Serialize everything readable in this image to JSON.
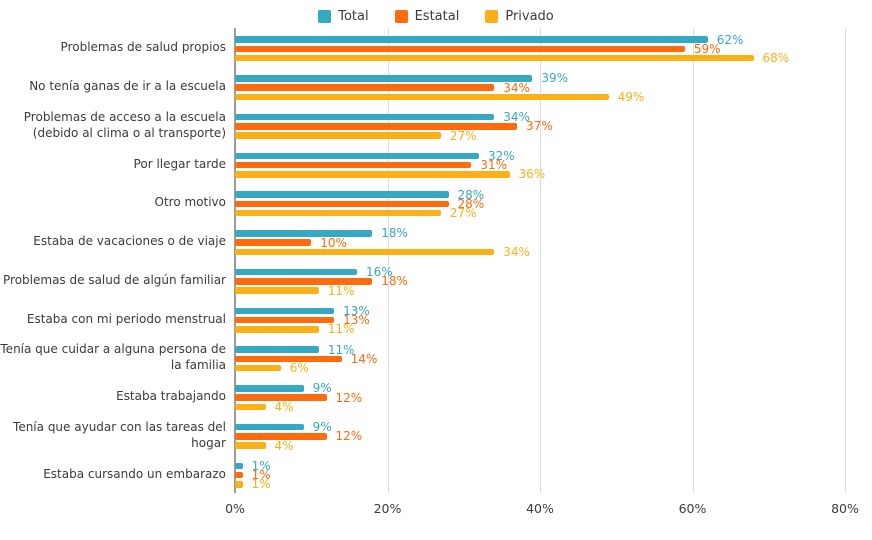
{
  "colors": {
    "background": "#ffffff",
    "text": "#3b3b3b",
    "gridline": "#dedede",
    "axis_line": "#9b9b9b"
  },
  "legend": {
    "items": [
      "Total",
      "Estatal",
      "Privado"
    ]
  },
  "chart_data": {
    "type": "bar",
    "orientation": "horizontal",
    "title": "",
    "xlabel": "",
    "ylabel": "",
    "xlim": [
      0,
      80
    ],
    "grid": true,
    "legend_position": "top-center",
    "value_suffix": "%",
    "categories": [
      "Problemas de salud propios",
      "No tenía ganas de ir a la escuela",
      "Problemas de acceso a la escuela (debido al clima o al transporte)",
      "Por llegar tarde",
      "Otro motivo",
      "Estaba de vacaciones o de viaje",
      "Problemas de salud de algún familiar",
      "Estaba con mi periodo menstrual",
      "Tenía que cuidar a alguna persona de la familia",
      "Estaba trabajando",
      "Tenía que ayudar con las tareas del hogar",
      "Estaba cursando un embarazo"
    ],
    "series": [
      {
        "name": "Total",
        "color": "#35a8c2",
        "values": [
          62,
          39,
          34,
          32,
          28,
          18,
          16,
          13,
          11,
          9,
          9,
          1
        ]
      },
      {
        "name": "Estatal",
        "color": "#fd6b0d",
        "values": [
          59,
          34,
          37,
          31,
          28,
          10,
          18,
          13,
          14,
          12,
          12,
          1
        ]
      },
      {
        "name": "Privado",
        "color": "#fbb017",
        "values": [
          68,
          49,
          27,
          36,
          27,
          34,
          11,
          11,
          6,
          4,
          4,
          1
        ]
      }
    ],
    "x_ticks": [
      {
        "value": 0,
        "label": "0%"
      },
      {
        "value": 20,
        "label": "20%"
      },
      {
        "value": 40,
        "label": "40%"
      },
      {
        "value": 60,
        "label": "60%"
      },
      {
        "value": 80,
        "label": "80%"
      }
    ]
  }
}
